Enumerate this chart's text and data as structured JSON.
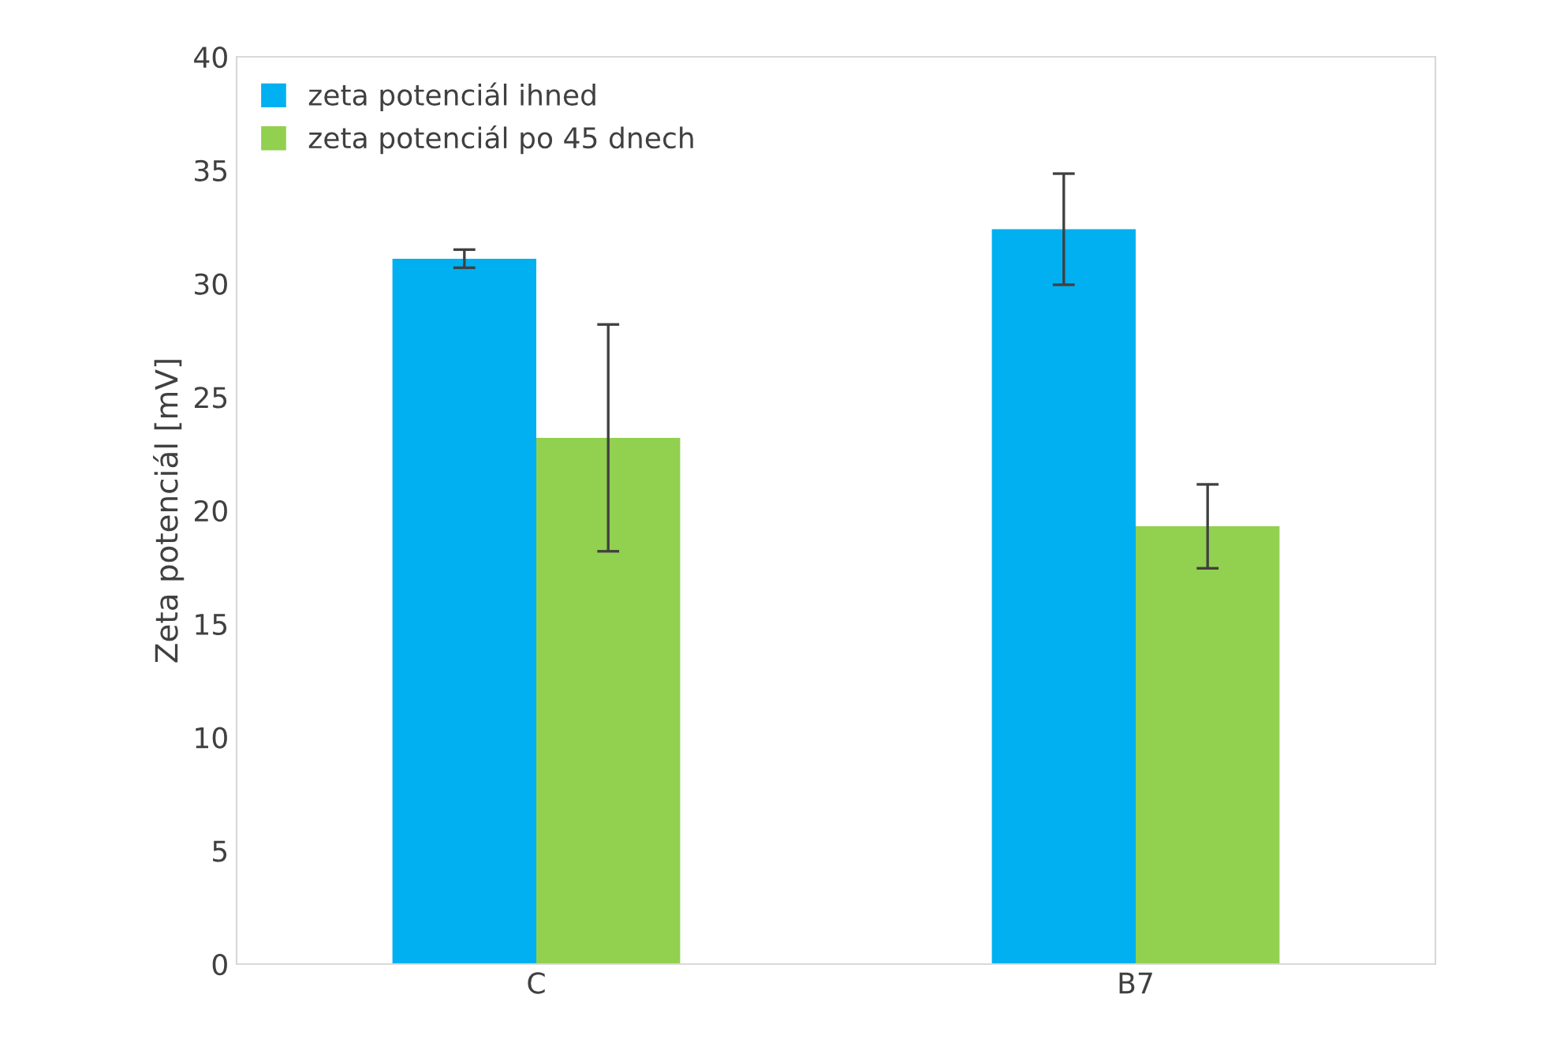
{
  "chart_data": {
    "type": "bar",
    "ylabel": "Zeta potenciál [mV]",
    "categories": [
      "C",
      "B7"
    ],
    "series": [
      {
        "name": "zeta potenciál ihned",
        "color": "#00b0f0",
        "values": [
          31.1,
          32.4
        ],
        "errors": [
          0.4,
          2.45
        ]
      },
      {
        "name": "zeta potenciál po 45 dnech",
        "color": "#92d050",
        "values": [
          23.2,
          19.3
        ],
        "errors": [
          5.0,
          1.85
        ]
      }
    ],
    "ylim": [
      0,
      40
    ],
    "yticks": [
      0,
      5,
      10,
      15,
      20,
      25,
      30,
      35,
      40
    ],
    "grid": false,
    "legend": "top left"
  }
}
